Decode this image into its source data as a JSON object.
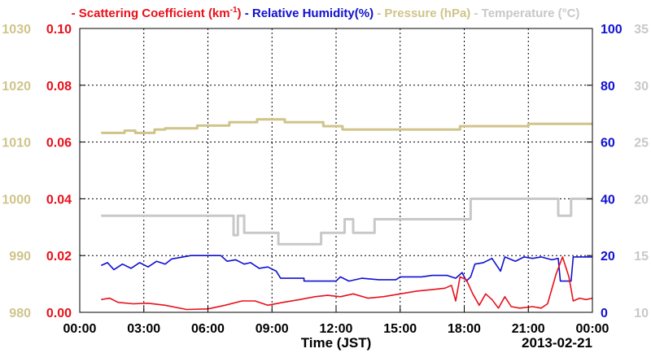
{
  "chart_data": {
    "type": "line",
    "legend": [
      {
        "dash": "-",
        "label": "Scattering Coefficient (km",
        "sup": "-1",
        "close": ")",
        "color": "#e8101a"
      },
      {
        "dash": "-",
        "label": "Relative Humidity(%)",
        "color": "#1010d0"
      },
      {
        "dash": "-",
        "label": "Pressure (hPa)",
        "color": "#cfc48a"
      },
      {
        "dash": "-",
        "label": "Temperature (°C)",
        "color": "#c8c8c8"
      }
    ],
    "xlabel": "Time (JST)",
    "date_label": "2013-02-21",
    "x_ticks": [
      "00:00",
      "03:00",
      "06:00",
      "09:00",
      "12:00",
      "15:00",
      "18:00",
      "21:00",
      "00:00"
    ],
    "xlim_hours": [
      0,
      24
    ],
    "axes": {
      "pressure": {
        "ticks": [
          "1030",
          "1020",
          "1010",
          "1000",
          "990",
          "980"
        ],
        "ylim": [
          980,
          1030
        ],
        "color": "#cfc48a"
      },
      "scattering": {
        "ticks": [
          "0.10",
          "0.08",
          "0.06",
          "0.04",
          "0.02",
          "0.00"
        ],
        "ylim": [
          0,
          0.1
        ],
        "color": "#e8101a"
      },
      "humidity": {
        "ticks": [
          "100",
          "80",
          "60",
          "40",
          "20",
          "0"
        ],
        "ylim": [
          0,
          100
        ],
        "color": "#1010d0"
      },
      "temperature": {
        "ticks": [
          "35",
          "30",
          "25",
          "20",
          "15",
          "10"
        ],
        "ylim": [
          10,
          35
        ],
        "color": "#c8c8c8"
      }
    },
    "grid": true,
    "series": {
      "pressure": {
        "name": "Pressure (hPa)",
        "axis": "pressure",
        "points": [
          [
            1.0,
            1011.6
          ],
          [
            2.1,
            1011.6
          ],
          [
            2.1,
            1012.0
          ],
          [
            2.6,
            1012.0
          ],
          [
            2.6,
            1011.6
          ],
          [
            3.5,
            1011.6
          ],
          [
            3.5,
            1012.2
          ],
          [
            4.0,
            1012.2
          ],
          [
            4.0,
            1012.4
          ],
          [
            5.5,
            1012.4
          ],
          [
            5.5,
            1012.9
          ],
          [
            7.0,
            1012.9
          ],
          [
            7.0,
            1013.5
          ],
          [
            8.3,
            1013.5
          ],
          [
            8.3,
            1014.0
          ],
          [
            9.6,
            1014.0
          ],
          [
            9.6,
            1013.5
          ],
          [
            11.4,
            1013.5
          ],
          [
            11.4,
            1012.8
          ],
          [
            12.3,
            1012.8
          ],
          [
            12.3,
            1012.2
          ],
          [
            17.8,
            1012.2
          ],
          [
            17.8,
            1012.8
          ],
          [
            21.0,
            1012.8
          ],
          [
            21.0,
            1013.2
          ],
          [
            24.0,
            1013.2
          ]
        ]
      },
      "temperature": {
        "name": "Temperature (°C)",
        "axis": "temperature",
        "points": [
          [
            1.0,
            18.5
          ],
          [
            7.2,
            18.5
          ],
          [
            7.2,
            16.8
          ],
          [
            7.4,
            16.8
          ],
          [
            7.4,
            18.5
          ],
          [
            7.7,
            18.5
          ],
          [
            7.7,
            17.0
          ],
          [
            9.3,
            17.0
          ],
          [
            9.3,
            16.0
          ],
          [
            11.3,
            16.0
          ],
          [
            11.3,
            17.0
          ],
          [
            12.4,
            17.0
          ],
          [
            12.4,
            18.2
          ],
          [
            12.8,
            18.2
          ],
          [
            12.8,
            17.0
          ],
          [
            13.8,
            17.0
          ],
          [
            13.8,
            18.2
          ],
          [
            18.3,
            18.2
          ],
          [
            18.3,
            20.0
          ],
          [
            22.4,
            20.0
          ],
          [
            22.4,
            18.5
          ],
          [
            23.0,
            18.5
          ],
          [
            23.0,
            20.0
          ],
          [
            24.0,
            20.0
          ]
        ]
      },
      "humidity": {
        "name": "Relative Humidity(%)",
        "axis": "humidity",
        "points": [
          [
            1.0,
            16.5
          ],
          [
            1.3,
            17.5
          ],
          [
            1.6,
            15.0
          ],
          [
            2.0,
            17.0
          ],
          [
            2.4,
            15.5
          ],
          [
            2.8,
            17.5
          ],
          [
            3.2,
            16.0
          ],
          [
            3.6,
            18.0
          ],
          [
            4.0,
            17.0
          ],
          [
            4.3,
            18.8
          ],
          [
            4.7,
            19.3
          ],
          [
            5.2,
            20.0
          ],
          [
            6.6,
            20.0
          ],
          [
            6.9,
            18.0
          ],
          [
            7.3,
            18.5
          ],
          [
            7.7,
            17.0
          ],
          [
            8.0,
            17.5
          ],
          [
            8.4,
            15.5
          ],
          [
            8.8,
            16.0
          ],
          [
            9.2,
            14.5
          ],
          [
            9.4,
            12.0
          ],
          [
            10.5,
            12.0
          ],
          [
            10.5,
            11.0
          ],
          [
            12.0,
            11.0
          ],
          [
            12.2,
            12.5
          ],
          [
            12.6,
            11.0
          ],
          [
            13.2,
            12.0
          ],
          [
            14.0,
            11.5
          ],
          [
            14.8,
            11.5
          ],
          [
            15.0,
            12.5
          ],
          [
            16.0,
            12.5
          ],
          [
            16.5,
            13.0
          ],
          [
            17.2,
            13.0
          ],
          [
            17.6,
            12.0
          ],
          [
            17.9,
            14.0
          ],
          [
            18.1,
            11.0
          ],
          [
            18.3,
            12.5
          ],
          [
            18.5,
            17.0
          ],
          [
            18.9,
            17.5
          ],
          [
            19.3,
            19.0
          ],
          [
            19.7,
            14.5
          ],
          [
            19.9,
            19.5
          ],
          [
            20.4,
            18.0
          ],
          [
            20.8,
            19.5
          ],
          [
            21.2,
            19.0
          ],
          [
            21.6,
            19.5
          ],
          [
            22.1,
            18.5
          ],
          [
            22.4,
            19.0
          ],
          [
            22.5,
            11.0
          ],
          [
            23.0,
            11.0
          ],
          [
            23.1,
            19.5
          ],
          [
            24.0,
            19.5
          ]
        ]
      },
      "scattering": {
        "name": "Scattering Coefficient (km-1)",
        "axis": "scattering",
        "points": [
          [
            1.0,
            0.0045
          ],
          [
            1.4,
            0.005
          ],
          [
            1.8,
            0.0035
          ],
          [
            2.5,
            0.003
          ],
          [
            3.2,
            0.0032
          ],
          [
            4.0,
            0.0025
          ],
          [
            5.0,
            0.001
          ],
          [
            6.0,
            0.0012
          ],
          [
            6.8,
            0.0025
          ],
          [
            7.6,
            0.004
          ],
          [
            8.2,
            0.004
          ],
          [
            8.8,
            0.0025
          ],
          [
            9.5,
            0.0035
          ],
          [
            10.3,
            0.0045
          ],
          [
            11.0,
            0.0055
          ],
          [
            11.6,
            0.006
          ],
          [
            12.2,
            0.0055
          ],
          [
            12.8,
            0.0065
          ],
          [
            13.5,
            0.005
          ],
          [
            14.2,
            0.0055
          ],
          [
            15.0,
            0.0065
          ],
          [
            15.8,
            0.0075
          ],
          [
            16.5,
            0.008
          ],
          [
            17.1,
            0.0085
          ],
          [
            17.4,
            0.0095
          ],
          [
            17.6,
            0.004
          ],
          [
            17.8,
            0.0125
          ],
          [
            18.1,
            0.0115
          ],
          [
            18.4,
            0.0065
          ],
          [
            18.7,
            0.0025
          ],
          [
            19.0,
            0.0065
          ],
          [
            19.3,
            0.0045
          ],
          [
            19.6,
            0.0015
          ],
          [
            19.9,
            0.0055
          ],
          [
            20.2,
            0.002
          ],
          [
            20.6,
            0.0015
          ],
          [
            21.2,
            0.002
          ],
          [
            21.6,
            0.0015
          ],
          [
            21.9,
            0.003
          ],
          [
            22.3,
            0.0135
          ],
          [
            22.6,
            0.0195
          ],
          [
            22.9,
            0.0125
          ],
          [
            23.1,
            0.004
          ],
          [
            23.4,
            0.005
          ],
          [
            23.7,
            0.0045
          ],
          [
            24.0,
            0.005
          ]
        ]
      }
    }
  }
}
